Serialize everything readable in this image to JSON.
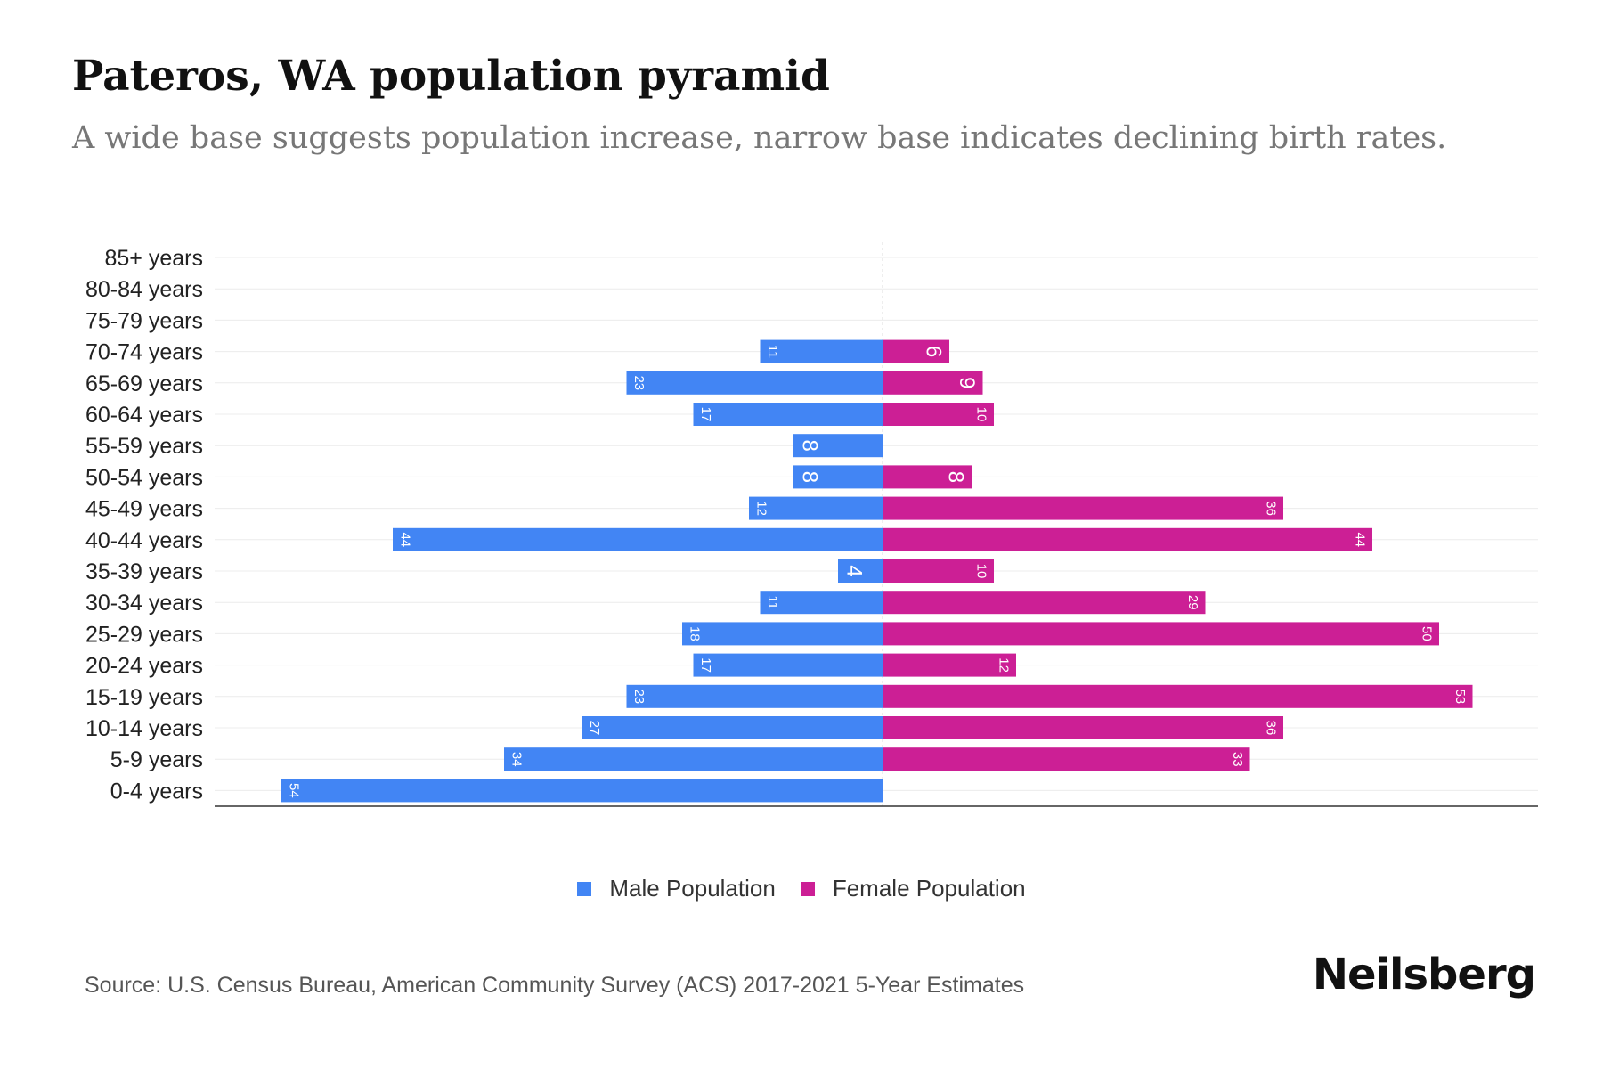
{
  "header": {
    "title": "Pateros, WA population pyramid",
    "subtitle": "A wide base suggests population increase, narrow base indicates declining birth rates."
  },
  "footer": {
    "source": "Source: U.S. Census Bureau, American Community Survey (ACS) 2017-2021 5-Year Estimates",
    "brand": "Neilsberg"
  },
  "colors": {
    "male": "#4285f4",
    "female": "#cc1f95"
  },
  "chart_data": {
    "type": "bar",
    "orientation": "horizontal-pyramid",
    "title": "Pateros, WA population pyramid",
    "categories": [
      "85+ years",
      "80-84 years",
      "75-79 years",
      "70-74 years",
      "65-69 years",
      "60-64 years",
      "55-59 years",
      "50-54 years",
      "45-49 years",
      "40-44 years",
      "35-39 years",
      "30-34 years",
      "25-29 years",
      "20-24 years",
      "15-19 years",
      "10-14 years",
      "5-9 years",
      "0-4 years"
    ],
    "series": [
      {
        "name": "Male Population",
        "values": [
          0,
          0,
          0,
          11,
          23,
          17,
          8,
          8,
          12,
          44,
          4,
          11,
          18,
          17,
          23,
          27,
          34,
          54
        ]
      },
      {
        "name": "Female Population",
        "values": [
          0,
          0,
          0,
          6,
          9,
          10,
          0,
          8,
          36,
          44,
          10,
          29,
          50,
          12,
          53,
          36,
          33,
          0
        ]
      }
    ],
    "xlim": [
      -60,
      60
    ],
    "grid": true,
    "legend": "bottom-center"
  }
}
